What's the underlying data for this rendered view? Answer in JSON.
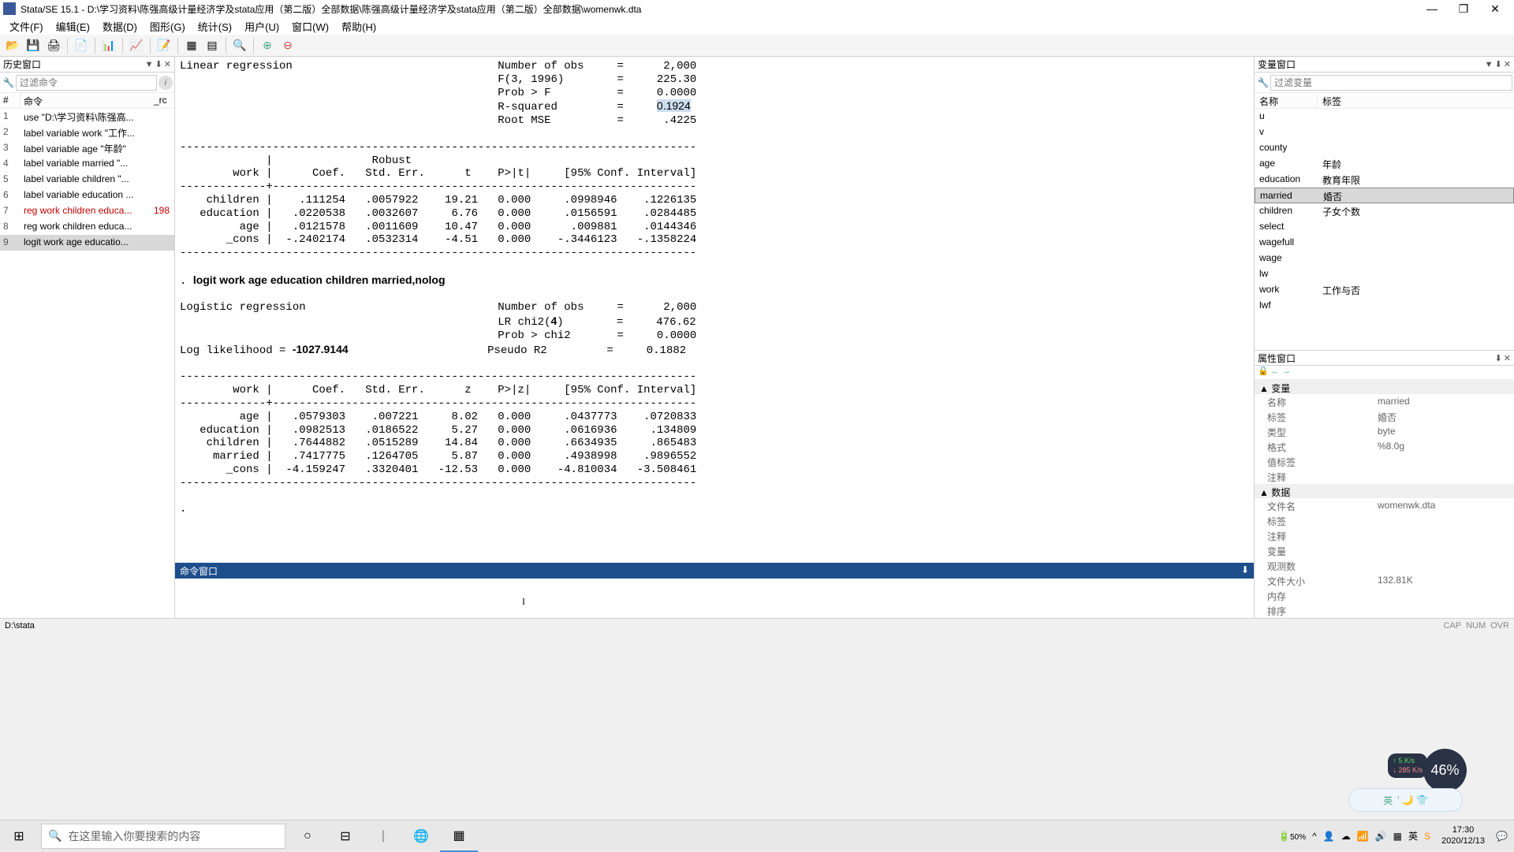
{
  "window": {
    "title": "Stata/SE 15.1 - D:\\学习资料\\陈强高级计量经济学及stata应用（第二版）全部数据\\陈强高级计量经济学及stata应用（第二版）全部数据\\womenwk.dta",
    "minimize": "—",
    "maximize": "❐",
    "close": "✕"
  },
  "menu": {
    "file": "文件(F)",
    "edit": "编辑(E)",
    "data": "数据(D)",
    "graphics": "图形(G)",
    "statistics": "统计(S)",
    "user": "用户(U)",
    "window": "窗口(W)",
    "help": "帮助(H)"
  },
  "left": {
    "title": "历史窗口",
    "filter_placeholder": "过滤命令",
    "col_num": "#",
    "col_cmd": "命令",
    "col_rc": "_rc",
    "rows": [
      {
        "n": "1",
        "cmd": "use \"D:\\学习资料\\陈强高...",
        "rc": "",
        "err": false,
        "sel": false
      },
      {
        "n": "2",
        "cmd": "label variable work \"工作...",
        "rc": "",
        "err": false,
        "sel": false
      },
      {
        "n": "3",
        "cmd": "label variable age \"年龄\"",
        "rc": "",
        "err": false,
        "sel": false
      },
      {
        "n": "4",
        "cmd": "label variable married \"...",
        "rc": "",
        "err": false,
        "sel": false
      },
      {
        "n": "5",
        "cmd": "label variable children \"...",
        "rc": "",
        "err": false,
        "sel": false
      },
      {
        "n": "6",
        "cmd": "label variable education ...",
        "rc": "",
        "err": false,
        "sel": false
      },
      {
        "n": "7",
        "cmd": "reg work children educa...",
        "rc": "198",
        "err": true,
        "sel": false
      },
      {
        "n": "8",
        "cmd": "reg work children educa...",
        "rc": "",
        "err": false,
        "sel": false
      },
      {
        "n": "9",
        "cmd": "logit work age educatio...",
        "rc": "",
        "err": false,
        "sel": true
      }
    ]
  },
  "results": {
    "text": "Linear regression                               Number of obs     =      2,000\n                                                F(3, 1996)        =     225.30\n                                                Prob > F          =     0.0000\n                                                R-squared         =     0.1924\n                                                Root MSE          =      .4225\n\n------------------------------------------------------------------------------\n             |               Robust\n        work |      Coef.   Std. Err.      t    P>|t|     [95% Conf. Interval]\n-------------+----------------------------------------------------------------\n    children |    .111254   .0057922    19.21   0.000     .0998946    .1226135\n   education |   .0220538   .0032607     6.76   0.000     .0156591    .0284485\n         age |   .0121578   .0011609    10.47   0.000      .009881    .0144346\n       _cons |  -.2402174   .0532314    -4.51   0.000    -.3446123   -.1358224\n------------------------------------------------------------------------------\n\n. logit work age education children married,nolog\n\nLogistic regression                             Number of obs     =      2,000\n                                                LR chi2(4)        =     476.62\n                                                Prob > chi2       =     0.0000\nLog likelihood = -1027.9144                     Pseudo R2         =     0.1882\n\n------------------------------------------------------------------------------\n        work |      Coef.   Std. Err.      z    P>|z|     [95% Conf. Interval]\n-------------+----------------------------------------------------------------\n         age |   .0579303    .007221     8.02   0.000     .0437773    .0720833\n   education |   .0982513   .0186522     5.27   0.000     .0616936     .134809\n    children |   .7644882   .0515289    14.84   0.000     .6634935     .865483\n     married |   .7417775   .1264705     5.87   0.000     .4938998    .9896552\n       _cons |  -4.159247   .3320401   -12.53   0.000    -4.810034   -3.508461\n------------------------------------------------------------------------------\n\n. ",
    "hl_value": "0.1924",
    "logit_cmd": "logit work age education children married,nolog",
    "log_lik": "-1027.9144",
    "chi_df": "4"
  },
  "cmd": {
    "title": "命令窗口"
  },
  "right": {
    "title": "变量窗口",
    "filter_placeholder": "过滤变量",
    "col_name": "名称",
    "col_label": "标签",
    "vars": [
      {
        "name": "u",
        "label": "",
        "sel": false
      },
      {
        "name": "v",
        "label": "",
        "sel": false
      },
      {
        "name": "county",
        "label": "",
        "sel": false
      },
      {
        "name": "age",
        "label": "年龄",
        "sel": false
      },
      {
        "name": "education",
        "label": "教育年限",
        "sel": false
      },
      {
        "name": "married",
        "label": "婚否",
        "sel": true
      },
      {
        "name": "children",
        "label": "子女个数",
        "sel": false
      },
      {
        "name": "select",
        "label": "",
        "sel": false
      },
      {
        "name": "wagefull",
        "label": "",
        "sel": false
      },
      {
        "name": "wage",
        "label": "",
        "sel": false
      },
      {
        "name": "lw",
        "label": "",
        "sel": false
      },
      {
        "name": "work",
        "label": "工作与否",
        "sel": false
      },
      {
        "name": "lwf",
        "label": "",
        "sel": false
      }
    ]
  },
  "props": {
    "title": "属性窗口",
    "group_var": "变量",
    "group_data": "数据",
    "var_rows": [
      {
        "k": "名称",
        "v": "married"
      },
      {
        "k": "标签",
        "v": "婚否"
      },
      {
        "k": "类型",
        "v": "byte"
      },
      {
        "k": "格式",
        "v": "%8.0g"
      },
      {
        "k": "值标签",
        "v": ""
      },
      {
        "k": "注释",
        "v": ""
      }
    ],
    "data_rows": [
      {
        "k": "文件名",
        "v": "womenwk.dta"
      },
      {
        "k": "标签",
        "v": ""
      },
      {
        "k": "注释",
        "v": ""
      },
      {
        "k": "变量",
        "v": ""
      },
      {
        "k": "观测数",
        "v": ""
      },
      {
        "k": "文件大小",
        "v": "132.81K"
      },
      {
        "k": "内存",
        "v": ""
      },
      {
        "k": "排序",
        "v": ""
      }
    ]
  },
  "status": {
    "path": "D:\\stata",
    "cap": "CAP",
    "num": "NUM",
    "ovr": "OVR"
  },
  "taskbar": {
    "search_placeholder": "在这里输入你要搜索的内容",
    "time": "17:30",
    "date": "2020/12/13",
    "battery": "50%"
  },
  "widget": {
    "pct": "46%",
    "up": "↑ 5  K/s",
    "down": "↓ 285 K/s",
    "ime": "英"
  }
}
